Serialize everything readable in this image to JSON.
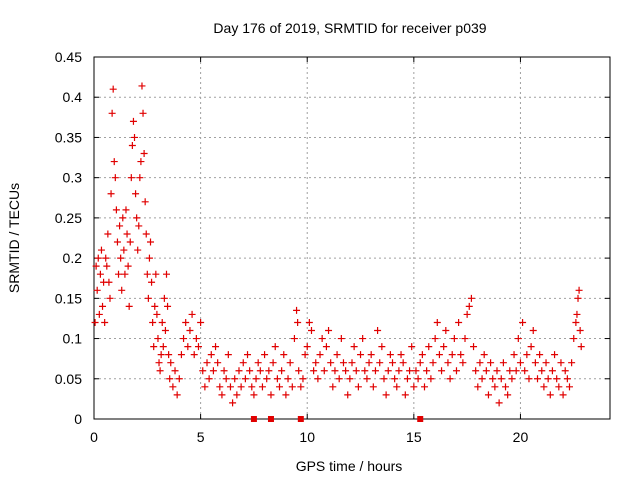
{
  "chart_data": {
    "type": "scatter",
    "title": "Day 176 of 2019, SRMTID for receiver p039",
    "xlabel": "GPS time / hours",
    "ylabel": "SRMTID / TECUs",
    "xlim": [
      0,
      24.2
    ],
    "ylim": [
      0,
      0.45
    ],
    "x_ticks": [
      "0",
      "5",
      "10",
      "15",
      "20"
    ],
    "y_ticks": [
      "0",
      "0.05",
      "0.1",
      "0.15",
      "0.2",
      "0.25",
      "0.3",
      "0.35",
      "0.4",
      "0.45"
    ],
    "grid": true,
    "marker": "+",
    "color": "#e00000",
    "series": [
      {
        "name": "SRMTID",
        "points": [
          [
            0.05,
            0.12
          ],
          [
            0.1,
            0.19
          ],
          [
            0.15,
            0.16
          ],
          [
            0.2,
            0.2
          ],
          [
            0.25,
            0.13
          ],
          [
            0.3,
            0.18
          ],
          [
            0.35,
            0.21
          ],
          [
            0.4,
            0.14
          ],
          [
            0.45,
            0.17
          ],
          [
            0.5,
            0.12
          ],
          [
            0.55,
            0.2
          ],
          [
            0.6,
            0.19
          ],
          [
            0.65,
            0.23
          ],
          [
            0.7,
            0.17
          ],
          [
            0.75,
            0.15
          ],
          [
            0.8,
            0.28
          ],
          [
            0.85,
            0.38
          ],
          [
            0.9,
            0.41
          ],
          [
            0.95,
            0.32
          ],
          [
            1.0,
            0.3
          ],
          [
            1.05,
            0.26
          ],
          [
            1.1,
            0.22
          ],
          [
            1.15,
            0.18
          ],
          [
            1.2,
            0.24
          ],
          [
            1.25,
            0.2
          ],
          [
            1.3,
            0.16
          ],
          [
            1.35,
            0.25
          ],
          [
            1.4,
            0.21
          ],
          [
            1.45,
            0.18
          ],
          [
            1.5,
            0.26
          ],
          [
            1.55,
            0.23
          ],
          [
            1.6,
            0.19
          ],
          [
            1.65,
            0.14
          ],
          [
            1.7,
            0.22
          ],
          [
            1.75,
            0.3
          ],
          [
            1.8,
            0.34
          ],
          [
            1.85,
            0.37
          ],
          [
            1.9,
            0.35
          ],
          [
            1.95,
            0.28
          ],
          [
            2.0,
            0.25
          ],
          [
            2.05,
            0.21
          ],
          [
            2.1,
            0.24
          ],
          [
            2.15,
            0.3
          ],
          [
            2.2,
            0.32
          ],
          [
            2.25,
            0.414
          ],
          [
            2.3,
            0.38
          ],
          [
            2.35,
            0.33
          ],
          [
            2.4,
            0.27
          ],
          [
            2.45,
            0.23
          ],
          [
            2.5,
            0.18
          ],
          [
            2.55,
            0.15
          ],
          [
            2.6,
            0.2
          ],
          [
            2.65,
            0.22
          ],
          [
            2.7,
            0.17
          ],
          [
            2.75,
            0.12
          ],
          [
            2.8,
            0.09
          ],
          [
            2.85,
            0.14
          ],
          [
            2.9,
            0.18
          ],
          [
            2.95,
            0.13
          ],
          [
            3.0,
            0.1
          ],
          [
            3.05,
            0.07
          ],
          [
            3.1,
            0.06
          ],
          [
            3.15,
            0.08
          ],
          [
            3.2,
            0.12
          ],
          [
            3.25,
            0.09
          ],
          [
            3.3,
            0.15
          ],
          [
            3.35,
            0.11
          ],
          [
            3.4,
            0.18
          ],
          [
            3.45,
            0.14
          ],
          [
            3.5,
            0.08
          ],
          [
            3.55,
            0.05
          ],
          [
            3.6,
            0.07
          ],
          [
            3.7,
            0.04
          ],
          [
            3.8,
            0.06
          ],
          [
            3.9,
            0.03
          ],
          [
            4.0,
            0.05
          ],
          [
            4.1,
            0.08
          ],
          [
            4.2,
            0.1
          ],
          [
            4.3,
            0.12
          ],
          [
            4.4,
            0.09
          ],
          [
            4.5,
            0.11
          ],
          [
            4.6,
            0.13
          ],
          [
            4.7,
            0.08
          ],
          [
            4.8,
            0.1
          ],
          [
            4.9,
            0.09
          ],
          [
            5.0,
            0.12
          ],
          [
            5.1,
            0.06
          ],
          [
            5.2,
            0.04
          ],
          [
            5.3,
            0.07
          ],
          [
            5.4,
            0.05
          ],
          [
            5.5,
            0.08
          ],
          [
            5.6,
            0.06
          ],
          [
            5.7,
            0.09
          ],
          [
            5.8,
            0.07
          ],
          [
            5.9,
            0.04
          ],
          [
            6.0,
            0.03
          ],
          [
            6.1,
            0.06
          ],
          [
            6.2,
            0.05
          ],
          [
            6.3,
            0.08
          ],
          [
            6.4,
            0.04
          ],
          [
            6.5,
            0.02
          ],
          [
            6.6,
            0.05
          ],
          [
            6.7,
            0.03
          ],
          [
            6.8,
            0.06
          ],
          [
            6.9,
            0.04
          ],
          [
            7.0,
            0.07
          ],
          [
            7.1,
            0.05
          ],
          [
            7.2,
            0.08
          ],
          [
            7.3,
            0.06
          ],
          [
            7.4,
            0.04
          ],
          [
            7.5,
            0.03
          ],
          [
            7.6,
            0.05
          ],
          [
            7.7,
            0.07
          ],
          [
            7.8,
            0.06
          ],
          [
            7.9,
            0.04
          ],
          [
            8.0,
            0.08
          ],
          [
            8.1,
            0.05
          ],
          [
            8.2,
            0.06
          ],
          [
            8.3,
            0.03
          ],
          [
            8.4,
            0.07
          ],
          [
            8.5,
            0.09
          ],
          [
            8.6,
            0.05
          ],
          [
            8.7,
            0.04
          ],
          [
            8.8,
            0.06
          ],
          [
            8.9,
            0.08
          ],
          [
            9.0,
            0.03
          ],
          [
            9.1,
            0.05
          ],
          [
            9.2,
            0.07
          ],
          [
            9.3,
            0.04
          ],
          [
            9.4,
            0.1
          ],
          [
            9.5,
            0.135
          ],
          [
            9.55,
            0.12
          ],
          [
            9.6,
            0.06
          ],
          [
            9.7,
            0.04
          ],
          [
            9.8,
            0.05
          ],
          [
            9.9,
            0.08
          ],
          [
            10.0,
            0.09
          ],
          [
            10.1,
            0.12
          ],
          [
            10.2,
            0.11
          ],
          [
            10.3,
            0.06
          ],
          [
            10.4,
            0.07
          ],
          [
            10.5,
            0.05
          ],
          [
            10.6,
            0.08
          ],
          [
            10.7,
            0.1
          ],
          [
            10.8,
            0.06
          ],
          [
            10.9,
            0.09
          ],
          [
            11.0,
            0.11
          ],
          [
            11.1,
            0.07
          ],
          [
            11.2,
            0.04
          ],
          [
            11.3,
            0.06
          ],
          [
            11.4,
            0.08
          ],
          [
            11.5,
            0.05
          ],
          [
            11.6,
            0.1
          ],
          [
            11.7,
            0.07
          ],
          [
            11.8,
            0.06
          ],
          [
            11.9,
            0.03
          ],
          [
            12.0,
            0.05
          ],
          [
            12.1,
            0.07
          ],
          [
            12.2,
            0.09
          ],
          [
            12.3,
            0.06
          ],
          [
            12.4,
            0.04
          ],
          [
            12.5,
            0.08
          ],
          [
            12.6,
            0.1
          ],
          [
            12.7,
            0.06
          ],
          [
            12.8,
            0.05
          ],
          [
            12.9,
            0.07
          ],
          [
            13.0,
            0.08
          ],
          [
            13.1,
            0.04
          ],
          [
            13.2,
            0.06
          ],
          [
            13.3,
            0.11
          ],
          [
            13.4,
            0.07
          ],
          [
            13.5,
            0.09
          ],
          [
            13.6,
            0.05
          ],
          [
            13.7,
            0.03
          ],
          [
            13.8,
            0.06
          ],
          [
            13.9,
            0.08
          ],
          [
            14.0,
            0.07
          ],
          [
            14.1,
            0.05
          ],
          [
            14.2,
            0.04
          ],
          [
            14.3,
            0.06
          ],
          [
            14.4,
            0.08
          ],
          [
            14.5,
            0.07
          ],
          [
            14.6,
            0.03
          ],
          [
            14.7,
            0.05
          ],
          [
            14.8,
            0.06
          ],
          [
            14.9,
            0.09
          ],
          [
            15.0,
            0.04
          ],
          [
            15.1,
            0.06
          ],
          [
            15.2,
            0.05
          ],
          [
            15.3,
            0.07
          ],
          [
            15.4,
            0.08
          ],
          [
            15.5,
            0.04
          ],
          [
            15.6,
            0.06
          ],
          [
            15.7,
            0.09
          ],
          [
            15.8,
            0.05
          ],
          [
            15.9,
            0.07
          ],
          [
            16.0,
            0.1
          ],
          [
            16.1,
            0.12
          ],
          [
            16.2,
            0.08
          ],
          [
            16.3,
            0.06
          ],
          [
            16.4,
            0.09
          ],
          [
            16.5,
            0.11
          ],
          [
            16.6,
            0.07
          ],
          [
            16.7,
            0.05
          ],
          [
            16.8,
            0.08
          ],
          [
            16.9,
            0.1
          ],
          [
            17.0,
            0.06
          ],
          [
            17.1,
            0.12
          ],
          [
            17.2,
            0.08
          ],
          [
            17.3,
            0.07
          ],
          [
            17.4,
            0.1
          ],
          [
            17.5,
            0.13
          ],
          [
            17.6,
            0.14
          ],
          [
            17.7,
            0.15
          ],
          [
            17.8,
            0.09
          ],
          [
            17.9,
            0.06
          ],
          [
            18.0,
            0.04
          ],
          [
            18.1,
            0.07
          ],
          [
            18.2,
            0.05
          ],
          [
            18.3,
            0.08
          ],
          [
            18.4,
            0.06
          ],
          [
            18.5,
            0.03
          ],
          [
            18.6,
            0.07
          ],
          [
            18.7,
            0.05
          ],
          [
            18.8,
            0.04
          ],
          [
            18.9,
            0.06
          ],
          [
            19.0,
            0.02
          ],
          [
            19.1,
            0.05
          ],
          [
            19.2,
            0.07
          ],
          [
            19.3,
            0.04
          ],
          [
            19.4,
            0.03
          ],
          [
            19.5,
            0.06
          ],
          [
            19.6,
            0.05
          ],
          [
            19.7,
            0.08
          ],
          [
            19.8,
            0.06
          ],
          [
            19.9,
            0.1
          ],
          [
            20.0,
            0.07
          ],
          [
            20.1,
            0.12
          ],
          [
            20.2,
            0.06
          ],
          [
            20.3,
            0.08
          ],
          [
            20.4,
            0.05
          ],
          [
            20.5,
            0.09
          ],
          [
            20.6,
            0.11
          ],
          [
            20.7,
            0.07
          ],
          [
            20.8,
            0.05
          ],
          [
            20.9,
            0.08
          ],
          [
            21.0,
            0.06
          ],
          [
            21.1,
            0.04
          ],
          [
            21.2,
            0.07
          ],
          [
            21.3,
            0.05
          ],
          [
            21.4,
            0.03
          ],
          [
            21.5,
            0.06
          ],
          [
            21.6,
            0.08
          ],
          [
            21.7,
            0.05
          ],
          [
            21.8,
            0.04
          ],
          [
            21.9,
            0.07
          ],
          [
            22.0,
            0.03
          ],
          [
            22.1,
            0.06
          ],
          [
            22.2,
            0.05
          ],
          [
            22.3,
            0.04
          ],
          [
            22.4,
            0.07
          ],
          [
            22.5,
            0.1
          ],
          [
            22.6,
            0.12
          ],
          [
            22.65,
            0.13
          ],
          [
            22.7,
            0.15
          ],
          [
            22.75,
            0.16
          ],
          [
            22.8,
            0.11
          ],
          [
            22.85,
            0.09
          ]
        ]
      }
    ],
    "bottom_markers_x": [
      7.5,
      8.3,
      9.7,
      15.3
    ]
  }
}
